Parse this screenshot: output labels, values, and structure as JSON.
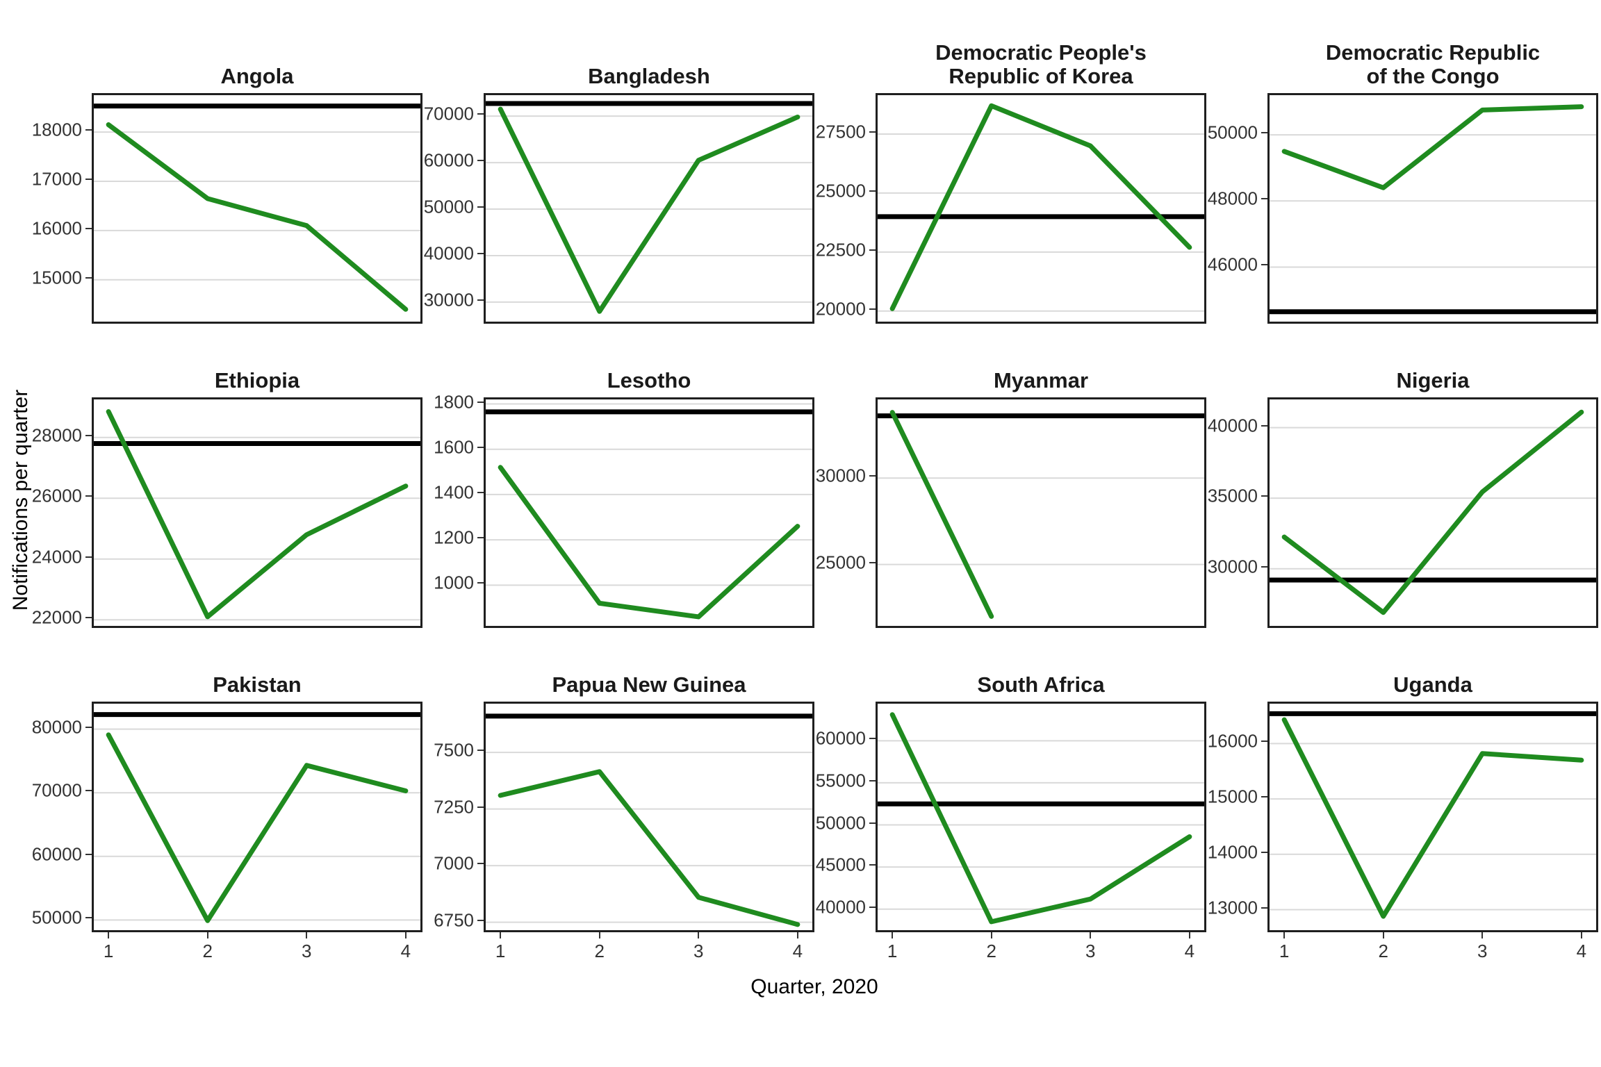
{
  "figure": {
    "x_axis_title": "Quarter, 2020",
    "y_axis_title": "Notifications per quarter",
    "x_ticks": [
      "1",
      "2",
      "3",
      "4"
    ]
  },
  "chart_data": {
    "type": "line",
    "x": [
      1,
      2,
      3,
      4
    ],
    "xlabel": "Quarter, 2020",
    "ylabel": "Notifications per quarter",
    "line_color": "#1f8b1f",
    "reference_line_color": "#000000",
    "gridline_color": "#d9d9d9",
    "grid": "horizontal-only",
    "legend": "none",
    "description": "Small multiples: quarterly TB notifications per country (green line) with a black horizontal reference line per panel",
    "panels": [
      {
        "title": "Angola",
        "values": [
          18150,
          16650,
          16100,
          14400
        ],
        "reference": 18530,
        "ylim": [
          14150,
          18750
        ],
        "yticks": [
          15000,
          16000,
          17000,
          18000
        ]
      },
      {
        "title": "Bangladesh",
        "values": [
          71500,
          28000,
          60500,
          69800
        ],
        "reference": 72700,
        "ylim": [
          25800,
          74500
        ],
        "yticks": [
          30000,
          40000,
          50000,
          60000,
          70000
        ]
      },
      {
        "title": "Democratic People's\nRepublic of Korea",
        "values": [
          20100,
          28700,
          27000,
          22700
        ],
        "reference": 24000,
        "ylim": [
          19550,
          29150
        ],
        "yticks": [
          20000,
          22500,
          25000,
          27500
        ]
      },
      {
        "title": "Democratic Republic\nof the Congo",
        "values": [
          49500,
          48400,
          50750,
          50850
        ],
        "reference": 44650,
        "ylim": [
          44350,
          51200
        ],
        "yticks": [
          46000,
          48000,
          50000
        ]
      },
      {
        "title": "Ethiopia",
        "values": [
          28850,
          22100,
          24800,
          26400
        ],
        "reference": 27800,
        "ylim": [
          21800,
          29250
        ],
        "yticks": [
          22000,
          24000,
          26000,
          28000
        ]
      },
      {
        "title": "Lesotho",
        "values": [
          1520,
          920,
          860,
          1260
        ],
        "reference": 1765,
        "ylim": [
          820,
          1820
        ],
        "yticks": [
          1000,
          1200,
          1400,
          1600,
          1800
        ]
      },
      {
        "title": "Myanmar",
        "values": [
          33800,
          22000,
          null,
          null
        ],
        "reference": 33600,
        "ylim": [
          21450,
          34550
        ],
        "yticks": [
          25000,
          30000
        ]
      },
      {
        "title": "Nigeria",
        "values": [
          32250,
          26900,
          35450,
          41100
        ],
        "reference": 29200,
        "ylim": [
          25950,
          42000
        ],
        "yticks": [
          30000,
          35000,
          40000
        ]
      },
      {
        "title": "Pakistan",
        "values": [
          79100,
          49900,
          74300,
          70300
        ],
        "reference": 82300,
        "ylim": [
          48400,
          84000
        ],
        "yticks": [
          50000,
          60000,
          70000,
          80000
        ]
      },
      {
        "title": "Papua New Guinea",
        "values": [
          7310,
          7415,
          6860,
          6740
        ],
        "reference": 7660,
        "ylim": [
          6715,
          7715
        ],
        "yticks": [
          6750,
          7000,
          7250,
          7500
        ]
      },
      {
        "title": "South Africa",
        "values": [
          63100,
          38500,
          41200,
          48600
        ],
        "reference": 52500,
        "ylim": [
          37500,
          64400
        ],
        "yticks": [
          40000,
          45000,
          50000,
          55000,
          60000
        ]
      },
      {
        "title": "Uganda",
        "values": [
          16430,
          12880,
          15820,
          15700
        ],
        "reference": 16540,
        "ylim": [
          12630,
          16720
        ],
        "yticks": [
          13000,
          14000,
          15000,
          16000
        ]
      }
    ]
  }
}
